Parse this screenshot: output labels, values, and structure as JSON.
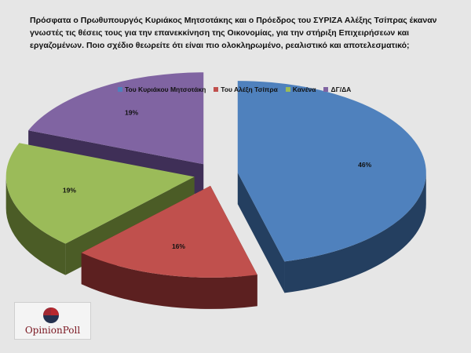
{
  "header": {
    "title": "Πρόσφατα ο Πρωθυπουργός Κυριάκος Μητσοτάκης και ο Πρόεδρος του ΣΥΡΙΖΑ Αλέξης Τσίπρας έκαναν γνωστές τις θέσεις τους για την επανεκκίνηση της Οικονομίας, για την στήριξη Επιχειρήσεων και εργαζομένων. Ποιο σχέδιο θεωρείτε ότι είναι πιο ολοκληρωμένο, ρεαλιστικό και αποτελεσματικό;"
  },
  "chart_data": {
    "type": "pie",
    "style": "3d-exploded",
    "legend_position": "top",
    "categories": [
      "Του Κυριάκου Μητσοτάκη",
      "Του Αλέξη Τσίπρα",
      "Κανένα",
      "ΔΓ/ΔΑ"
    ],
    "values": [
      46,
      16,
      19,
      19
    ],
    "value_labels": [
      "46%",
      "16%",
      "19%",
      "19%"
    ],
    "colors": [
      "#4f81bd",
      "#c0504d",
      "#9bbb59",
      "#8064a2"
    ],
    "side_colors": [
      "#243f60",
      "#5c2020",
      "#4b5c26",
      "#3f2f57"
    ]
  },
  "logo": {
    "text": "OpinionPoll",
    "colors": {
      "accent": "#b7282e",
      "dark": "#24314f",
      "text": "#7a1620"
    }
  }
}
